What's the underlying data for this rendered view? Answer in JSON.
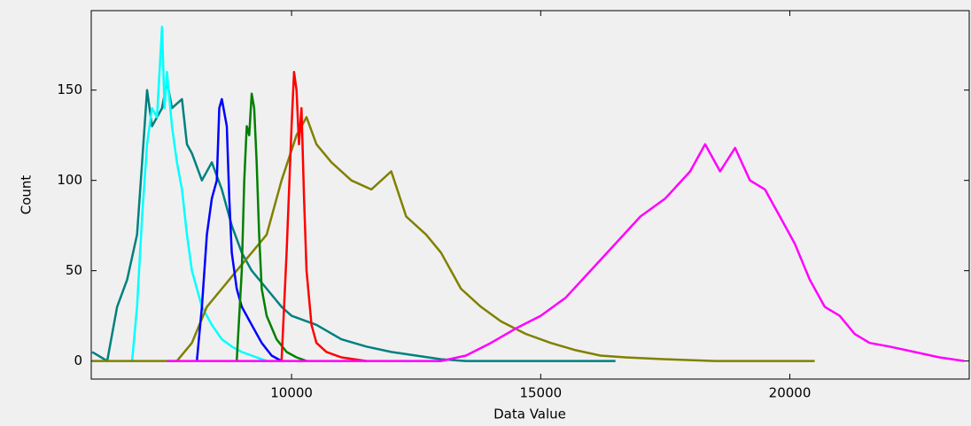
{
  "chart_data": {
    "type": "line",
    "xlabel": "Data Value",
    "ylabel": "Count",
    "xlim": [
      5980,
      23600
    ],
    "ylim": [
      -10,
      194
    ],
    "xticks": [
      10000,
      15000,
      20000
    ],
    "yticks": [
      0,
      50,
      100,
      150
    ],
    "series": [
      {
        "color": "#008080",
        "x": [
          6000,
          6300,
          6500,
          6700,
          6900,
          7000,
          7100,
          7200,
          7400,
          7500,
          7600,
          7800,
          7900,
          8000,
          8200,
          8400,
          8600,
          8800,
          9000,
          9200,
          9500,
          9800,
          10000,
          10500,
          11000,
          11500,
          12000,
          12500,
          13000,
          13500,
          16500
        ],
        "values": [
          5,
          0,
          30,
          45,
          70,
          110,
          150,
          130,
          140,
          155,
          140,
          145,
          120,
          115,
          100,
          110,
          95,
          75,
          60,
          50,
          40,
          30,
          25,
          20,
          12,
          8,
          5,
          3,
          1,
          0,
          0
        ]
      },
      {
        "color": "#00ffff",
        "x": [
          6800,
          6900,
          7000,
          7100,
          7200,
          7300,
          7400,
          7450,
          7500,
          7600,
          7700,
          7800,
          7900,
          8000,
          8200,
          8400,
          8600,
          8800,
          9000,
          9200,
          9400,
          9500
        ],
        "values": [
          0,
          30,
          80,
          120,
          140,
          135,
          185,
          140,
          160,
          130,
          110,
          95,
          70,
          50,
          30,
          20,
          12,
          8,
          5,
          3,
          1,
          0
        ]
      },
      {
        "color": "#808000",
        "x": [
          6000,
          7700,
          8000,
          8300,
          8600,
          8900,
          9200,
          9500,
          9800,
          10100,
          10300,
          10500,
          10800,
          11200,
          11600,
          12000,
          12300,
          12700,
          13000,
          13400,
          13800,
          14200,
          14700,
          15200,
          15700,
          16200,
          16700,
          17500,
          18500,
          20500
        ],
        "values": [
          0,
          0,
          10,
          30,
          40,
          50,
          60,
          70,
          100,
          125,
          135,
          120,
          110,
          100,
          95,
          105,
          80,
          70,
          60,
          40,
          30,
          22,
          15,
          10,
          6,
          3,
          2,
          1,
          0,
          0
        ]
      },
      {
        "color": "#0000ff",
        "x": [
          8100,
          8200,
          8300,
          8400,
          8500,
          8550,
          8600,
          8700,
          8750,
          8800,
          8900,
          9000,
          9200,
          9400,
          9600,
          9800
        ],
        "values": [
          0,
          30,
          70,
          90,
          100,
          140,
          145,
          130,
          90,
          60,
          40,
          30,
          20,
          10,
          3,
          0
        ]
      },
      {
        "color": "#008000",
        "x": [
          8900,
          9000,
          9050,
          9100,
          9150,
          9200,
          9250,
          9300,
          9350,
          9400,
          9500,
          9700,
          9900,
          10100,
          10300
        ],
        "values": [
          0,
          50,
          100,
          130,
          125,
          148,
          140,
          110,
          70,
          40,
          25,
          12,
          5,
          2,
          0
        ]
      },
      {
        "color": "#ff0000",
        "x": [
          9800,
          9900,
          10000,
          10050,
          10100,
          10150,
          10200,
          10250,
          10300,
          10400,
          10500,
          10700,
          11000,
          11500
        ],
        "values": [
          0,
          60,
          130,
          160,
          150,
          120,
          140,
          90,
          50,
          20,
          10,
          5,
          2,
          0
        ]
      },
      {
        "color": "#ff00ff",
        "x": [
          7500,
          13000,
          13500,
          14000,
          14500,
          15000,
          15500,
          16000,
          16500,
          17000,
          17500,
          18000,
          18300,
          18600,
          18900,
          19200,
          19500,
          19800,
          20100,
          20400,
          20700,
          21000,
          21300,
          21600,
          22000,
          22500,
          23000,
          23500
        ],
        "values": [
          0,
          0,
          3,
          10,
          18,
          25,
          35,
          50,
          65,
          80,
          90,
          105,
          120,
          105,
          118,
          100,
          95,
          80,
          65,
          45,
          30,
          25,
          15,
          10,
          8,
          5,
          2,
          0
        ]
      }
    ]
  }
}
